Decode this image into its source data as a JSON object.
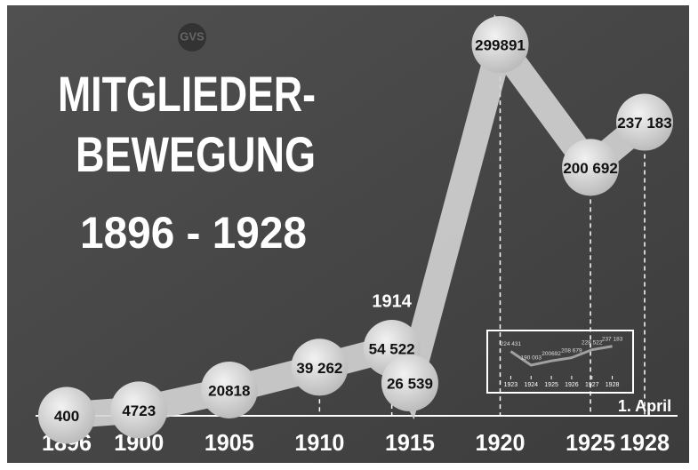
{
  "logo": "GVS",
  "chart_data": [
    {
      "type": "line",
      "title_lines": [
        "MITGLIEDER-",
        "BEWEGUNG"
      ],
      "subtitle": "1896 - 1928",
      "x": [
        1896,
        1900,
        1905,
        1910,
        1914,
        1915,
        1920,
        1925,
        1928
      ],
      "values": [
        400,
        4723,
        20818,
        39262,
        54522,
        26539,
        299891,
        200692,
        237183
      ],
      "value_labels": [
        "400",
        "4723",
        "20818",
        "39 262",
        "54 522",
        "26 539",
        "299891",
        "200 692",
        "237 183"
      ],
      "xlim": [
        1895.2,
        1929
      ],
      "ylim": [
        0,
        300000
      ],
      "xticks": [
        1896,
        1900,
        1905,
        1910,
        1915,
        1920,
        1925,
        1928
      ],
      "annotations": [
        {
          "text": "1914",
          "x": 1914
        },
        {
          "text": "1. April",
          "x": 1928
        }
      ],
      "color": "#d4d4d4"
    },
    {
      "type": "line",
      "x": [
        1923,
        1924,
        1925,
        1926,
        1927,
        1928
      ],
      "values": [
        224431,
        190003,
        200692,
        208679,
        228522,
        237183
      ],
      "value_labels": [
        "224 431",
        "190 003",
        "200692",
        "208 679",
        "228 522",
        "237 183"
      ],
      "xlim": [
        1922.5,
        1928.5
      ],
      "ylim": [
        170000,
        250000
      ],
      "xticks": [
        1923,
        1924,
        1925,
        1926,
        1927,
        1928
      ],
      "color": "#a0a0a0"
    }
  ]
}
